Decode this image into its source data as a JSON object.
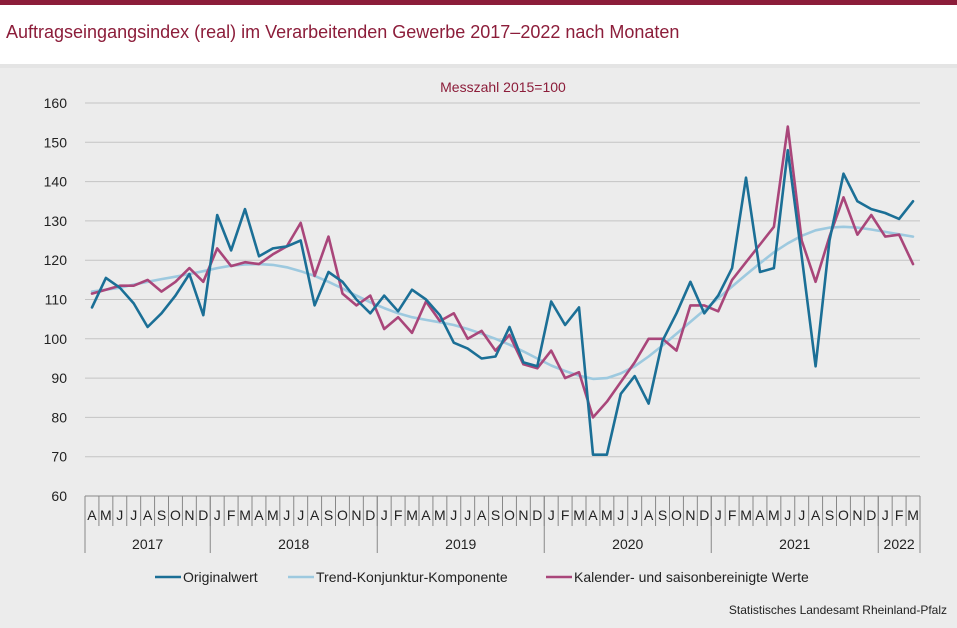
{
  "title": "Auftragseingangsindex (real) im Verarbeitenden Gewerbe 2017–2022 nach Monaten",
  "source": "Statistisches Landesamt  Rheinland-Pfalz",
  "colors": {
    "original": "#1b6f96",
    "trend": "#9dc9df",
    "adjusted": "#a9467a",
    "accent": "#8c1d3a"
  },
  "chart_data": {
    "type": "line",
    "subtitle": "Messzahl  2015=100",
    "ylim": [
      60,
      160
    ],
    "yticks": [
      60,
      70,
      80,
      90,
      100,
      110,
      120,
      130,
      140,
      150,
      160
    ],
    "grid": true,
    "legend_position": "bottom",
    "month_labels": [
      "A",
      "M",
      "J",
      "J",
      "A",
      "S",
      "O",
      "N",
      "D",
      "J",
      "F",
      "M",
      "A",
      "M",
      "J",
      "J",
      "A",
      "S",
      "O",
      "N",
      "D",
      "J",
      "F",
      "M",
      "A",
      "M",
      "J",
      "J",
      "A",
      "S",
      "O",
      "N",
      "D",
      "J",
      "F",
      "M",
      "A",
      "M",
      "J",
      "J",
      "A",
      "S",
      "O",
      "N",
      "D",
      "J",
      "F",
      "M",
      "A",
      "M",
      "J",
      "J",
      "A",
      "S",
      "O",
      "N",
      "D",
      "J",
      "F",
      "M"
    ],
    "year_groups": [
      {
        "label": "2017",
        "months": 9
      },
      {
        "label": "2018",
        "months": 12
      },
      {
        "label": "2019",
        "months": 12
      },
      {
        "label": "2020",
        "months": 12
      },
      {
        "label": "2021",
        "months": 12
      },
      {
        "label": "2022",
        "months": 3
      }
    ],
    "series": [
      {
        "name": "Originalwert",
        "color_key": "original",
        "values": [
          108,
          115.5,
          113,
          109,
          103,
          106.5,
          111,
          116.5,
          106,
          131.5,
          122.5,
          133,
          121,
          123,
          123.5,
          125,
          108.5,
          117,
          114.5,
          110,
          106.5,
          111,
          107,
          112.5,
          110,
          106,
          99,
          97.5,
          95,
          95.5,
          103,
          94,
          93,
          109.5,
          103.5,
          108,
          70.5,
          70.5,
          86,
          90.5,
          83.5,
          99.5,
          106.5,
          114.5,
          106.5,
          111,
          118,
          141,
          117,
          118,
          148,
          121,
          93,
          125,
          142,
          135,
          133,
          132,
          130.5,
          135
        ]
      },
      {
        "name": "Trend-Konjunktur-Komponente",
        "color_key": "trend",
        "values": [
          112,
          112.5,
          113,
          113.8,
          114.5,
          115.2,
          115.8,
          116.5,
          117.2,
          118,
          118.6,
          118.9,
          119,
          118.8,
          118.2,
          117.2,
          116,
          114.5,
          112.8,
          111,
          109.3,
          107.8,
          106.5,
          105.5,
          104.8,
          104.2,
          103.5,
          102.5,
          101.3,
          100,
          98.5,
          96.8,
          95,
          93.2,
          91.8,
          90.6,
          89.8,
          90,
          91.2,
          93,
          95.5,
          98.3,
          101.3,
          104.3,
          107.3,
          110.3,
          113.3,
          116.3,
          119.2,
          122,
          124.3,
          126.2,
          127.6,
          128.3,
          128.5,
          128.3,
          127.8,
          127.2,
          126.6,
          126
        ]
      },
      {
        "name": "Kalender- und saisonbereinigte Werte",
        "color_key": "adjusted",
        "values": [
          111.5,
          112.5,
          113.5,
          113.5,
          115,
          112,
          114.5,
          118,
          114.5,
          123,
          118.5,
          119.5,
          119,
          121.5,
          123.5,
          129.5,
          116,
          126,
          111.5,
          108.5,
          111,
          102.5,
          105.5,
          101.5,
          109.5,
          104.5,
          106.5,
          100,
          102,
          97,
          101,
          93.5,
          92.5,
          97,
          90,
          91.5,
          80,
          84,
          89,
          94,
          100,
          100,
          97,
          108.5,
          108.5,
          107,
          115,
          119.5,
          124,
          128.5,
          154,
          125,
          114.5,
          126,
          136,
          126.5,
          131.5,
          126,
          126.5,
          119
        ]
      }
    ]
  }
}
